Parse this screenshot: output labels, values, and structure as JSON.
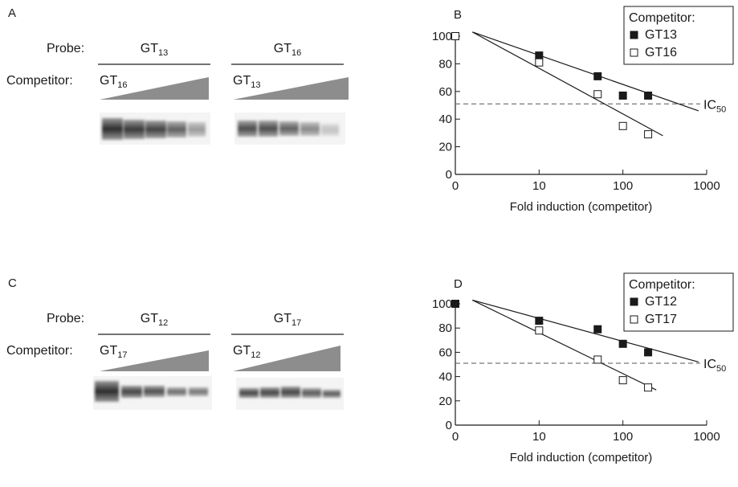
{
  "panels": {
    "A": {
      "letter": "A",
      "probe_label": "Probe:",
      "competitor_label": "Competitor:",
      "lanes": [
        {
          "probe": "GT",
          "probe_sub": "13",
          "competitor": "GT",
          "competitor_sub": "16"
        },
        {
          "probe": "GT",
          "probe_sub": "16",
          "competitor": "GT",
          "competitor_sub": "13"
        }
      ]
    },
    "C": {
      "letter": "C",
      "probe_label": "Probe:",
      "competitor_label": "Competitor:",
      "lanes": [
        {
          "probe": "GT",
          "probe_sub": "12",
          "competitor": "GT",
          "competitor_sub": "17"
        },
        {
          "probe": "GT",
          "probe_sub": "17",
          "competitor": "GT",
          "competitor_sub": "12"
        }
      ]
    }
  },
  "chart_data": [
    {
      "panel": "B",
      "type": "scatter",
      "xlabel": "Fold induction (competitor)",
      "ylabel": "",
      "x_scale": "log",
      "x_ticks": [
        "0",
        "10",
        "100",
        "1000"
      ],
      "y_ticks": [
        "0",
        "20",
        "40",
        "60",
        "80",
        "100"
      ],
      "ylim": [
        0,
        100
      ],
      "legend_title": "Competitor:",
      "legend_position": "top-right",
      "threshold": {
        "y": 51,
        "label": "IC",
        "label_sub": "50"
      },
      "series": [
        {
          "name": "GT13",
          "marker": "filled-square",
          "points": [
            [
              10,
              86
            ],
            [
              50,
              71
            ],
            [
              100,
              57
            ],
            [
              200,
              57
            ]
          ],
          "fit": [
            [
              1.6,
              103
            ],
            [
              800,
              46
            ]
          ]
        },
        {
          "name": "GT16",
          "marker": "open-square",
          "points": [
            [
              1,
              100
            ],
            [
              10,
              81
            ],
            [
              50,
              58
            ],
            [
              100,
              35
            ],
            [
              200,
              29
            ]
          ],
          "fit": [
            [
              1.6,
              103
            ],
            [
              300,
              28
            ]
          ]
        }
      ]
    },
    {
      "panel": "D",
      "type": "scatter",
      "xlabel": "Fold induction (competitor)",
      "ylabel": "",
      "x_scale": "log",
      "x_ticks": [
        "0",
        "10",
        "100",
        "1000"
      ],
      "y_ticks": [
        "0",
        "20",
        "40",
        "60",
        "80",
        "100"
      ],
      "ylim": [
        0,
        100
      ],
      "legend_title": "Competitor:",
      "legend_position": "top-right",
      "threshold": {
        "y": 51,
        "label": "IC",
        "label_sub": "50"
      },
      "series": [
        {
          "name": "GT12",
          "marker": "filled-square",
          "points": [
            [
              1,
              100
            ],
            [
              10,
              86
            ],
            [
              50,
              79
            ],
            [
              100,
              67
            ],
            [
              200,
              60
            ]
          ],
          "fit": [
            [
              1.6,
              103
            ],
            [
              800,
              52
            ]
          ]
        },
        {
          "name": "GT17",
          "marker": "open-square",
          "points": [
            [
              10,
              78
            ],
            [
              50,
              54
            ],
            [
              100,
              37
            ],
            [
              200,
              31
            ]
          ],
          "fit": [
            [
              1.6,
              103
            ],
            [
              250,
              29
            ]
          ]
        }
      ]
    }
  ]
}
